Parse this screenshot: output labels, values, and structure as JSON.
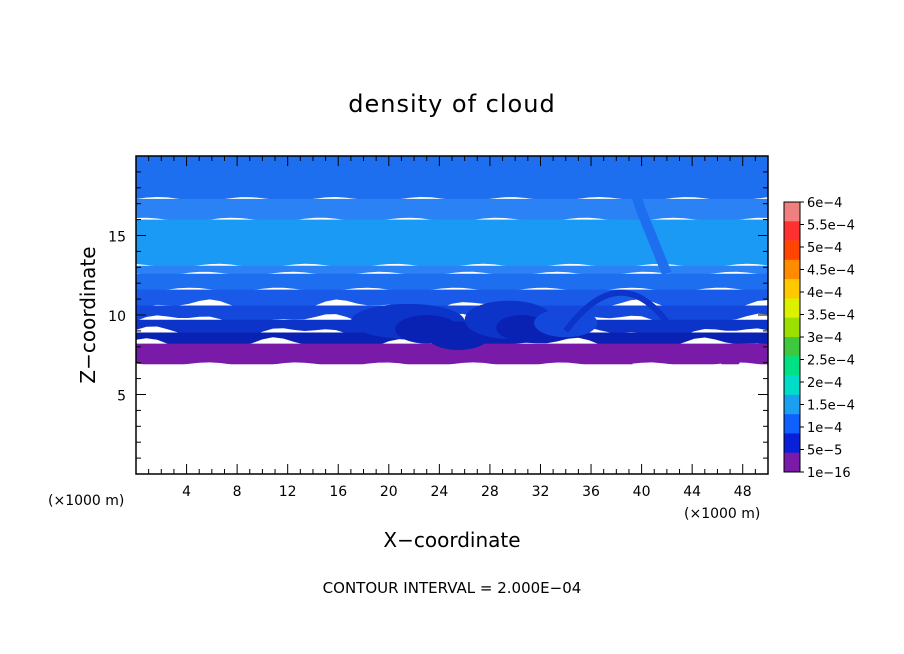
{
  "chart_data": {
    "type": "heatmap",
    "title": "density of cloud",
    "xlabel": "X−coordinate",
    "ylabel": "Z−coordinate",
    "x_unit": "(×1000 m)",
    "y_unit": "(×1000 m)",
    "xlim": [
      0,
      50
    ],
    "ylim": [
      0,
      20
    ],
    "x_ticks": [
      4,
      8,
      12,
      16,
      20,
      24,
      28,
      32,
      36,
      40,
      44,
      48
    ],
    "x_tick_labels": [
      "4",
      "8",
      "12",
      "16",
      "20",
      "24",
      "28",
      "32",
      "36",
      "40",
      "44",
      "48"
    ],
    "y_ticks": [
      5,
      10,
      15
    ],
    "y_tick_labels": [
      "5",
      "10",
      "15"
    ],
    "colorbar": {
      "labels": [
        "6e−4",
        "5.5e−4",
        "5e−4",
        "4.5e−4",
        "4e−4",
        "3.5e−4",
        "3e−4",
        "2.5e−4",
        "2e−4",
        "1.5e−4",
        "1e−4",
        "5e−5",
        "1e−16"
      ],
      "colors": [
        "#f08080",
        "#ff3030",
        "#ff4500",
        "#ff8c00",
        "#ffc800",
        "#dcf000",
        "#9be000",
        "#3ec83e",
        "#00e085",
        "#00dcc8",
        "#1aa0f0",
        "#1060ff",
        "#0a1fd8",
        "#7a1aa8"
      ]
    },
    "bands": [
      {
        "z_top": 20.0,
        "color": "#1e6ef0"
      },
      {
        "z_top": 17.3,
        "color": "#2b82f5"
      },
      {
        "z_top": 16.0,
        "color": "#1a9af5"
      },
      {
        "z_top": 13.1,
        "color": "#2b82f5"
      },
      {
        "z_top": 12.6,
        "color": "#1e6ef0"
      },
      {
        "z_top": 11.6,
        "color": "#1a5ae8"
      },
      {
        "z_top": 10.6,
        "color": "#1448dc"
      },
      {
        "z_top": 9.7,
        "color": "#0c34c8"
      },
      {
        "z_top": 8.9,
        "color": "#0a22b4"
      },
      {
        "z_top": 8.2,
        "color": "#7a1aa8"
      }
    ],
    "cloud_base_z": 6.9,
    "footer": "CONTOUR INTERVAL = 2.000E−04"
  }
}
